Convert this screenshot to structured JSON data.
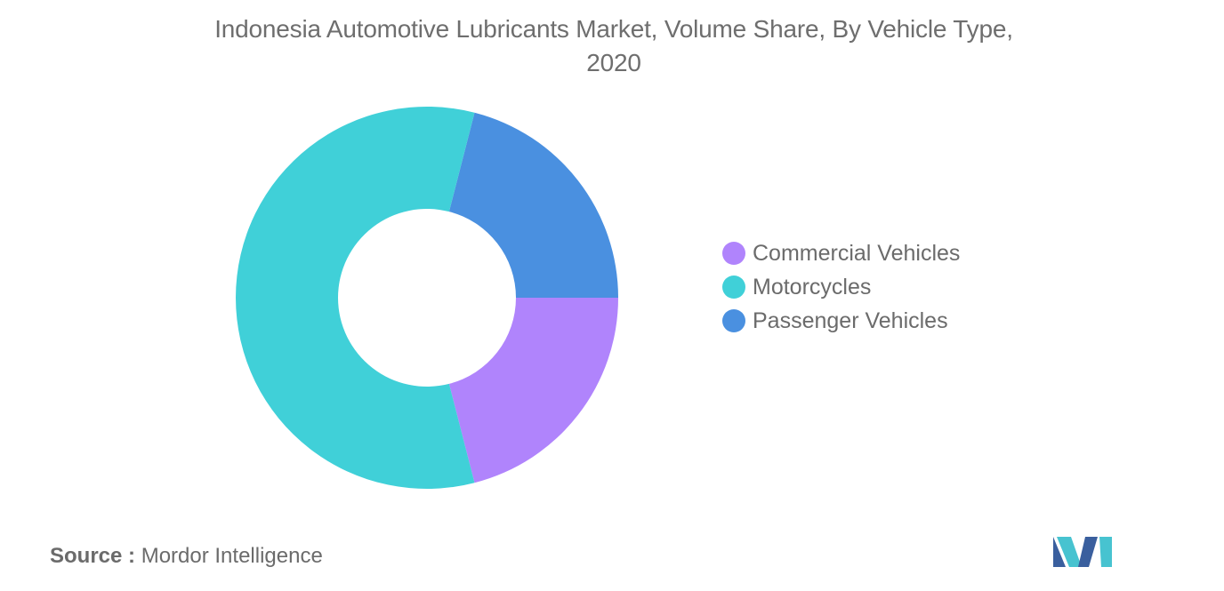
{
  "chart_data": {
    "type": "pie",
    "variant": "donut",
    "title_line1": "Indonesia Automotive Lubricants Market, Volume Share, By Vehicle Type,",
    "title_line2": "2020",
    "categories": [
      "Commercial Vehicles",
      "Motorcycles",
      "Passenger Vehicles"
    ],
    "values": [
      21,
      58,
      21
    ],
    "colors": [
      "#b084fc",
      "#40d0d8",
      "#4a90e0"
    ],
    "legend_position": "right"
  },
  "source": {
    "key": "Source :",
    "value": "Mordor Intelligence"
  },
  "logo": {
    "icon": "mordor-intelligence-logo-icon",
    "colors": [
      "#3a5f9e",
      "#47c3d0"
    ]
  }
}
